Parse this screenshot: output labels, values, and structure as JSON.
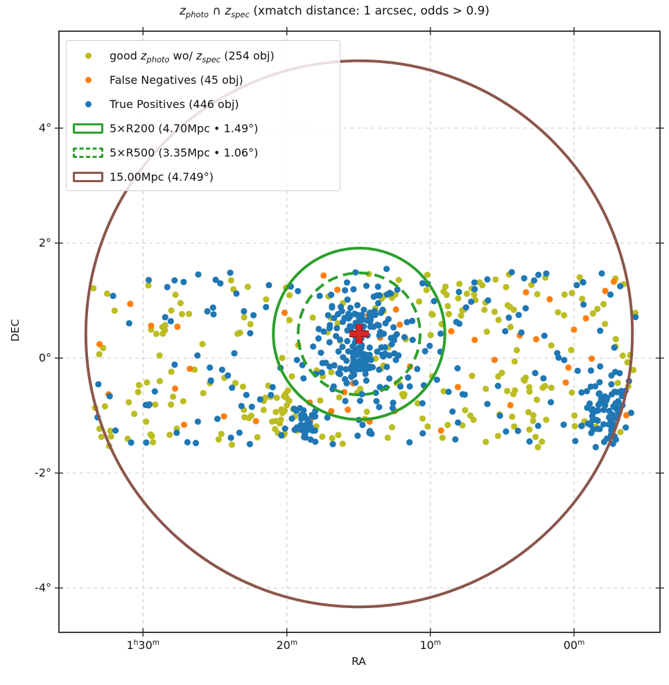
{
  "chart_data": {
    "type": "scatter",
    "title_parts": [
      {
        "text": "z"
      },
      {
        "text": "photo"
      },
      {
        "text": " ∩ "
      },
      {
        "text": "z"
      },
      {
        "text": "spec"
      },
      {
        "text": " (xmatch distance: 1 arcsec, odds > 0.9)"
      }
    ],
    "xlabel": "RA",
    "ylabel": "DEC",
    "grid": true,
    "legend_position": "upper left",
    "x_ticks": [
      {
        "parts": [
          [
            "1",
            0
          ],
          [
            "h",
            1
          ],
          [
            "30",
            0
          ],
          [
            "m",
            1
          ]
        ],
        "frac": 0.1399
      },
      {
        "parts": [
          [
            "20",
            0
          ],
          [
            "m",
            1
          ]
        ],
        "frac": 0.3792
      },
      {
        "parts": [
          [
            "10",
            0
          ],
          [
            "m",
            1
          ]
        ],
        "frac": 0.618
      },
      {
        "parts": [
          [
            "00",
            0
          ],
          [
            "m",
            1
          ]
        ],
        "frac": 0.857
      }
    ],
    "y_ticks": [
      {
        "label": "4°",
        "dec": 4
      },
      {
        "label": "2°",
        "dec": 2
      },
      {
        "label": "0°",
        "dec": 0
      },
      {
        "label": "-2°",
        "dec": -2
      },
      {
        "label": "-4°",
        "dec": -4
      }
    ],
    "ylim_deg": [
      -4.85,
      5.69
    ],
    "cluster_center": {
      "dec_deg": 0.42,
      "marker": "plus",
      "color": "#d62728"
    },
    "circles": [
      {
        "name": "5xR200",
        "label": "5×R200 (4.70Mpc • 1.49°)",
        "radius_deg": 1.49,
        "color": "#2ca02c",
        "style": "solid"
      },
      {
        "name": "5xR500",
        "label": "5×R500 (3.35Mpc • 1.06°)",
        "radius_deg": 1.06,
        "color": "#2ca02c",
        "style": "dashed"
      },
      {
        "name": "15Mpc",
        "label": "15.00Mpc (4.749°)",
        "radius_deg": 4.749,
        "color": "#8c564b",
        "style": "solid"
      }
    ],
    "seed": 13,
    "point_radius": 4.6,
    "series": [
      {
        "name": "good zphoto wo/ zspec",
        "count": 254,
        "color": "#bcbd22",
        "components": [
          {
            "kind": "uniform",
            "n": 190,
            "x": [
              0.05,
              0.963
            ],
            "dec": [
              -1.55,
              1.5
            ]
          },
          {
            "kind": "gauss",
            "n": 22,
            "cx": 0.33,
            "cy": -0.95,
            "sx": 0.035,
            "sy": 0.3
          },
          {
            "kind": "gauss",
            "n": 22,
            "cx": 0.77,
            "cy": -0.8,
            "sx": 0.045,
            "sy": 0.35
          },
          {
            "kind": "gauss",
            "n": 20,
            "cx": 0.69,
            "cy": 1.05,
            "sx": 0.04,
            "sy": 0.25
          }
        ]
      },
      {
        "name": "False Negatives",
        "count": 45,
        "color": "#ff7f0e",
        "components": [
          {
            "kind": "uniform",
            "n": 45,
            "x": [
              0.06,
              0.95
            ],
            "dec": [
              -1.45,
              1.45
            ]
          }
        ]
      },
      {
        "name": "True Positives",
        "count": 446,
        "color": "#1f77b4",
        "components": [
          {
            "kind": "uniform",
            "n": 176,
            "x": [
              0.06,
              0.963
            ],
            "dec": [
              -1.5,
              1.5
            ]
          },
          {
            "kind": "gauss",
            "n": 140,
            "cx": 0.503,
            "cy": 0.3,
            "sx": 0.032,
            "sy": 0.45
          },
          {
            "kind": "gauss",
            "n": 30,
            "cx": 0.499,
            "cy": -0.05,
            "sx": 0.013,
            "sy": 0.15
          },
          {
            "kind": "gauss",
            "n": 28,
            "cx": 0.408,
            "cy": -1.15,
            "sx": 0.012,
            "sy": 0.18
          },
          {
            "kind": "gauss",
            "n": 72,
            "cx": 0.915,
            "cy": -0.9,
            "sx": 0.02,
            "sy": 0.35
          }
        ]
      }
    ]
  },
  "legend": {
    "items": [
      {
        "marker": "dot",
        "color": "#bcbd22",
        "dash": false,
        "parts": [
          {
            "t": "good ",
            "s": ""
          },
          {
            "t": "z",
            "s": "i"
          },
          {
            "t": "photo",
            "s": "isub"
          },
          {
            "t": " wo/ ",
            "s": ""
          },
          {
            "t": "z",
            "s": "i"
          },
          {
            "t": "spec",
            "s": "isub"
          },
          {
            "t": " (254 obj)",
            "s": ""
          }
        ]
      },
      {
        "marker": "dot",
        "color": "#ff7f0e",
        "dash": false,
        "parts": [
          {
            "t": "False Negatives (45 obj)",
            "s": ""
          }
        ]
      },
      {
        "marker": "dot",
        "color": "#1f77b4",
        "dash": false,
        "parts": [
          {
            "t": "True Positives (446 obj)",
            "s": ""
          }
        ]
      },
      {
        "marker": "rect",
        "color": "#2ca02c",
        "dash": false,
        "parts": [
          {
            "t": "5×R200 (4.70Mpc • 1.49°)",
            "s": ""
          }
        ]
      },
      {
        "marker": "rect",
        "color": "#2ca02c",
        "dash": true,
        "parts": [
          {
            "t": "5×R500 (3.35Mpc • 1.06°)",
            "s": ""
          }
        ]
      },
      {
        "marker": "rect",
        "color": "#8c564b",
        "dash": false,
        "parts": [
          {
            "t": "15.00Mpc (4.749°)",
            "s": ""
          }
        ]
      }
    ]
  },
  "colors": {
    "good_zphoto": "#bcbd22",
    "false_negatives": "#ff7f0e",
    "true_positives": "#1f77b4",
    "r200_circle": "#2ca02c",
    "r500_circle": "#2ca02c",
    "mpc_circle": "#8c564b",
    "center_cross": "#d62728",
    "gridline": "#c9c9c9",
    "spine": "#262626"
  }
}
